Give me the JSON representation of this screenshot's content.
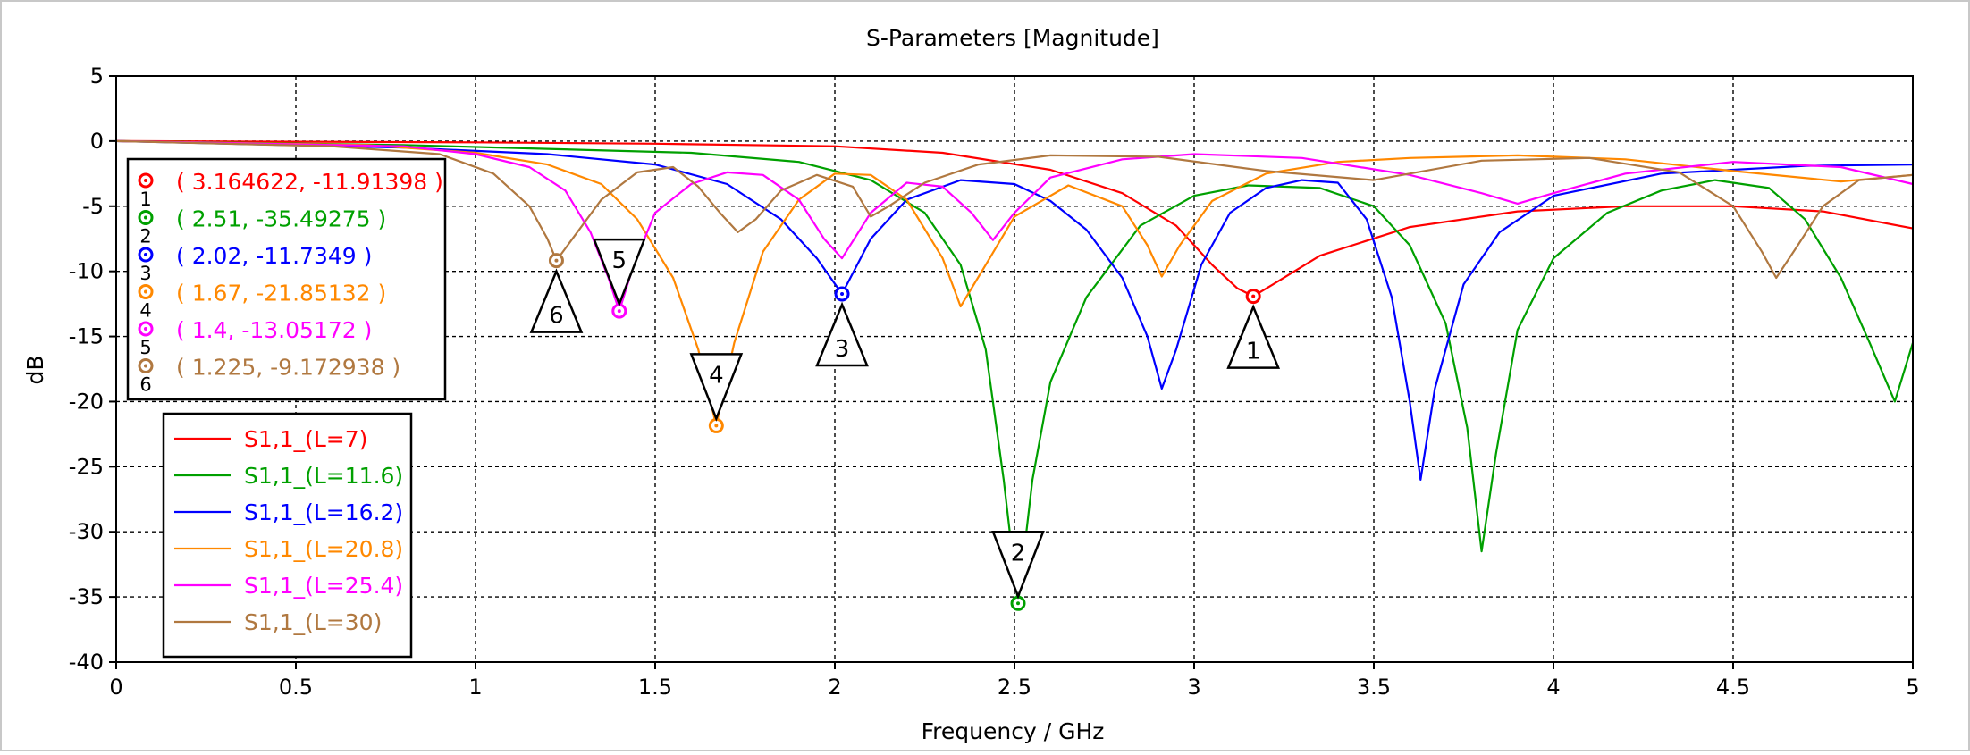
{
  "chart_data": {
    "type": "line",
    "title": "S-Parameters [Magnitude]",
    "xlabel": "Frequency / GHz",
    "ylabel": "dB",
    "xlim": [
      0,
      5
    ],
    "ylim": [
      -40,
      5
    ],
    "x_ticks": [
      "0",
      "0.5",
      "1",
      "1.5",
      "2",
      "2.5",
      "3",
      "3.5",
      "4",
      "4.5",
      "5"
    ],
    "y_ticks": [
      "5",
      "0",
      "-5",
      "-10",
      "-15",
      "-20",
      "-25",
      "-30",
      "-35",
      "-40"
    ],
    "grid": true,
    "legend_position": "bottom-left",
    "series": [
      {
        "name": "S1,1_(L=7)",
        "color": "#ff0000",
        "x": [
          0,
          1,
          1.5,
          2,
          2.3,
          2.6,
          2.8,
          2.95,
          3.05,
          3.12,
          3.164622,
          3.22,
          3.35,
          3.6,
          3.9,
          4.2,
          4.5,
          4.75,
          5
        ],
        "values": [
          0,
          -0.1,
          -0.2,
          -0.4,
          -0.9,
          -2.2,
          -4.0,
          -6.5,
          -9.5,
          -11.3,
          -11.91398,
          -11.0,
          -8.8,
          -6.6,
          -5.4,
          -5.0,
          -5.0,
          -5.4,
          -6.7
        ]
      },
      {
        "name": "S1,1_(L=11.6)",
        "color": "#00a000",
        "x": [
          0,
          0.8,
          1.2,
          1.6,
          1.9,
          2.1,
          2.25,
          2.35,
          2.42,
          2.47,
          2.51,
          2.55,
          2.6,
          2.7,
          2.85,
          3.0,
          3.15,
          3.35,
          3.5,
          3.6,
          3.7,
          3.76,
          3.8,
          3.84,
          3.9,
          4.0,
          4.15,
          4.3,
          4.45,
          4.6,
          4.7,
          4.8,
          4.88,
          4.95,
          5.0
        ],
        "values": [
          0,
          -0.3,
          -0.6,
          -0.9,
          -1.6,
          -3.0,
          -5.5,
          -9.5,
          -16,
          -26,
          -35.49275,
          -26,
          -18.5,
          -12,
          -6.5,
          -4.2,
          -3.4,
          -3.6,
          -5.0,
          -8.0,
          -14.0,
          -22.0,
          -31.5,
          -24.0,
          -14.5,
          -9.0,
          -5.5,
          -3.8,
          -3.0,
          -3.6,
          -6.0,
          -10.5,
          -15.5,
          -20.0,
          -15.5
        ]
      },
      {
        "name": "S1,1_(L=16.2)",
        "color": "#0000ff",
        "x": [
          0,
          0.8,
          1.2,
          1.5,
          1.7,
          1.85,
          1.95,
          2.02,
          2.1,
          2.2,
          2.35,
          2.5,
          2.6,
          2.7,
          2.8,
          2.87,
          2.91,
          2.95,
          3.02,
          3.1,
          3.2,
          3.3,
          3.4,
          3.48,
          3.55,
          3.6,
          3.63,
          3.67,
          3.75,
          3.85,
          4.0,
          4.3,
          4.7,
          5.0
        ],
        "values": [
          0,
          -0.5,
          -1.0,
          -1.8,
          -3.3,
          -6.0,
          -9.0,
          -11.7349,
          -7.5,
          -4.5,
          -3.0,
          -3.3,
          -4.6,
          -6.8,
          -10.5,
          -15.0,
          -19.0,
          -16.0,
          -9.5,
          -5.5,
          -3.6,
          -3.0,
          -3.2,
          -6.0,
          -12.0,
          -20.0,
          -26.0,
          -19.0,
          -11.0,
          -7.0,
          -4.2,
          -2.5,
          -1.9,
          -1.8
        ]
      },
      {
        "name": "S1,1_(L=20.8)",
        "color": "#ff8800",
        "x": [
          0,
          0.7,
          1.0,
          1.2,
          1.35,
          1.45,
          1.55,
          1.62,
          1.67,
          1.72,
          1.8,
          1.9,
          2.0,
          2.1,
          2.2,
          2.3,
          2.35,
          2.42,
          2.5,
          2.65,
          2.8,
          2.87,
          2.91,
          2.96,
          3.05,
          3.2,
          3.4,
          3.6,
          3.9,
          4.2,
          4.5,
          4.8,
          5.0
        ],
        "values": [
          0,
          -0.3,
          -0.9,
          -1.8,
          -3.3,
          -6.0,
          -10.5,
          -16.0,
          -21.85132,
          -15.5,
          -8.5,
          -4.5,
          -2.5,
          -2.6,
          -4.5,
          -9.0,
          -12.7,
          -9.5,
          -5.8,
          -3.4,
          -5.0,
          -8.0,
          -10.4,
          -8.0,
          -4.6,
          -2.5,
          -1.6,
          -1.3,
          -1.1,
          -1.4,
          -2.3,
          -3.1,
          -2.6
        ]
      },
      {
        "name": "S1,1_(L=25.4)",
        "color": "#ff00ff",
        "x": [
          0,
          0.8,
          1.0,
          1.15,
          1.25,
          1.32,
          1.37,
          1.4,
          1.44,
          1.5,
          1.6,
          1.7,
          1.8,
          1.9,
          1.97,
          2.02,
          2.1,
          2.2,
          2.3,
          2.38,
          2.44,
          2.5,
          2.6,
          2.8,
          3.0,
          3.3,
          3.6,
          3.8,
          3.9,
          4.0,
          4.2,
          4.5,
          4.8,
          5.0
        ],
        "values": [
          0,
          -0.4,
          -1.0,
          -2.0,
          -3.8,
          -7.0,
          -10.5,
          -13.05172,
          -9.5,
          -5.5,
          -3.3,
          -2.4,
          -2.6,
          -4.5,
          -7.5,
          -9.0,
          -5.5,
          -3.2,
          -3.5,
          -5.5,
          -7.6,
          -5.5,
          -2.8,
          -1.4,
          -1.0,
          -1.3,
          -2.6,
          -4.0,
          -4.8,
          -4.0,
          -2.5,
          -1.6,
          -2.0,
          -3.3
        ]
      },
      {
        "name": "S1,1_(L=30)",
        "color": "#b07840",
        "x": [
          0,
          0.6,
          0.9,
          1.05,
          1.15,
          1.2,
          1.225,
          1.27,
          1.35,
          1.45,
          1.55,
          1.62,
          1.68,
          1.73,
          1.78,
          1.85,
          1.95,
          2.05,
          2.1,
          2.15,
          2.25,
          2.4,
          2.6,
          2.9,
          3.2,
          3.5,
          3.8,
          4.1,
          4.35,
          4.5,
          4.58,
          4.62,
          4.68,
          4.75,
          4.85,
          5.0
        ],
        "values": [
          0,
          -0.4,
          -1.0,
          -2.5,
          -5.0,
          -7.5,
          -9.172938,
          -7.5,
          -4.5,
          -2.4,
          -2.0,
          -3.5,
          -5.5,
          -7.0,
          -6.0,
          -3.8,
          -2.6,
          -3.5,
          -5.8,
          -5.0,
          -3.2,
          -1.8,
          -1.1,
          -1.2,
          -2.3,
          -3.0,
          -1.5,
          -1.3,
          -2.4,
          -5.0,
          -8.5,
          -10.5,
          -8.0,
          -5.0,
          -3.0,
          -2.6
        ]
      }
    ],
    "markers": [
      {
        "id": "1",
        "label": "( 3.164622, -11.91398 )",
        "x": 3.164622,
        "y": -11.91398,
        "color": "#ff0000"
      },
      {
        "id": "2",
        "label": "( 2.51, -35.49275 )",
        "x": 2.51,
        "y": -35.49275,
        "color": "#00a000"
      },
      {
        "id": "3",
        "label": "( 2.02, -11.7349 )",
        "x": 2.02,
        "y": -11.7349,
        "color": "#0000ff"
      },
      {
        "id": "4",
        "label": "( 1.67, -21.85132 )",
        "x": 1.67,
        "y": -21.85132,
        "color": "#ff8800"
      },
      {
        "id": "5",
        "label": "( 1.4, -13.05172 )",
        "x": 1.4,
        "y": -13.05172,
        "color": "#ff00ff"
      },
      {
        "id": "6",
        "label": "( 1.225, -9.172938 )",
        "x": 1.225,
        "y": -9.172938,
        "color": "#b07840"
      }
    ]
  }
}
